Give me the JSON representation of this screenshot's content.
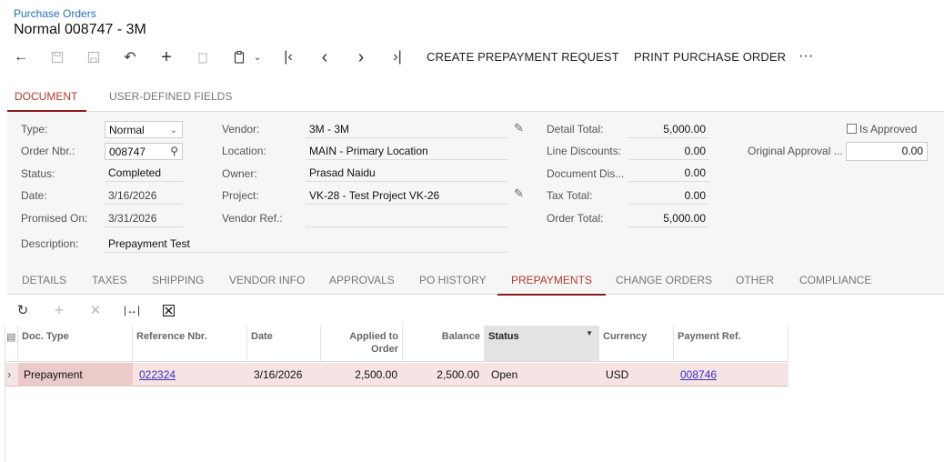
{
  "breadcrumb": "Purchase Orders",
  "title": "Normal 008747 - 3M",
  "toolbar": {
    "create_prepayment": "CREATE PREPAYMENT REQUEST",
    "print_po": "PRINT PURCHASE ORDER",
    "more": "···"
  },
  "top_tabs": [
    "DOCUMENT",
    "USER-DEFINED FIELDS"
  ],
  "form": {
    "type_label": "Type:",
    "type_value": "Normal",
    "order_nbr_label": "Order Nbr.:",
    "order_nbr_value": "008747",
    "status_label": "Status:",
    "status_value": "Completed",
    "date_label": "Date:",
    "date_value": "3/16/2026",
    "promised_label": "Promised On:",
    "promised_value": "3/31/2026",
    "description_label": "Description:",
    "description_value": "Prepayment Test",
    "vendor_label": "Vendor:",
    "vendor_value": "3M - 3M",
    "location_label": "Location:",
    "location_value": "MAIN - Primary Location",
    "owner_label": "Owner:",
    "owner_value": "Prasad Naidu",
    "project_label": "Project:",
    "project_value": "VK-28 - Test Project VK-26",
    "vendor_ref_label": "Vendor Ref.:",
    "vendor_ref_value": "",
    "detail_total_label": "Detail Total:",
    "detail_total_value": "5,000.00",
    "line_discounts_label": "Line Discounts:",
    "line_discounts_value": "0.00",
    "doc_discount_label": "Document Dis...",
    "doc_discount_value": "0.00",
    "tax_total_label": "Tax Total:",
    "tax_total_value": "0.00",
    "order_total_label": "Order Total:",
    "order_total_value": "5,000.00",
    "is_approved_label": "Is Approved",
    "is_approved_checked": false,
    "orig_approval_label": "Original Approval ...",
    "orig_approval_value": "0.00"
  },
  "mid_tabs": [
    "DETAILS",
    "TAXES",
    "SHIPPING",
    "VENDOR INFO",
    "APPROVALS",
    "PO HISTORY",
    "PREPAYMENTS",
    "CHANGE ORDERS",
    "OTHER",
    "COMPLIANCE"
  ],
  "active_mid_tab": "PREPAYMENTS",
  "grid": {
    "headers": {
      "doc_type": "Doc. Type",
      "ref_nbr": "Reference Nbr.",
      "date": "Date",
      "applied_line1": "Applied to",
      "applied_line2": "Order",
      "balance": "Balance",
      "status": "Status",
      "currency": "Currency",
      "payment_ref": "Payment Ref."
    },
    "rows": [
      {
        "doc_type": "Prepayment",
        "ref_nbr": "022324",
        "date": "3/16/2026",
        "applied": "2,500.00",
        "balance": "2,500.00",
        "status": "Open",
        "currency": "USD",
        "payment_ref": "008746"
      }
    ]
  },
  "colors": {
    "accent": "#8b1a1a",
    "link": "#3b2fbf",
    "row_highlight": "#f6e4e4"
  }
}
